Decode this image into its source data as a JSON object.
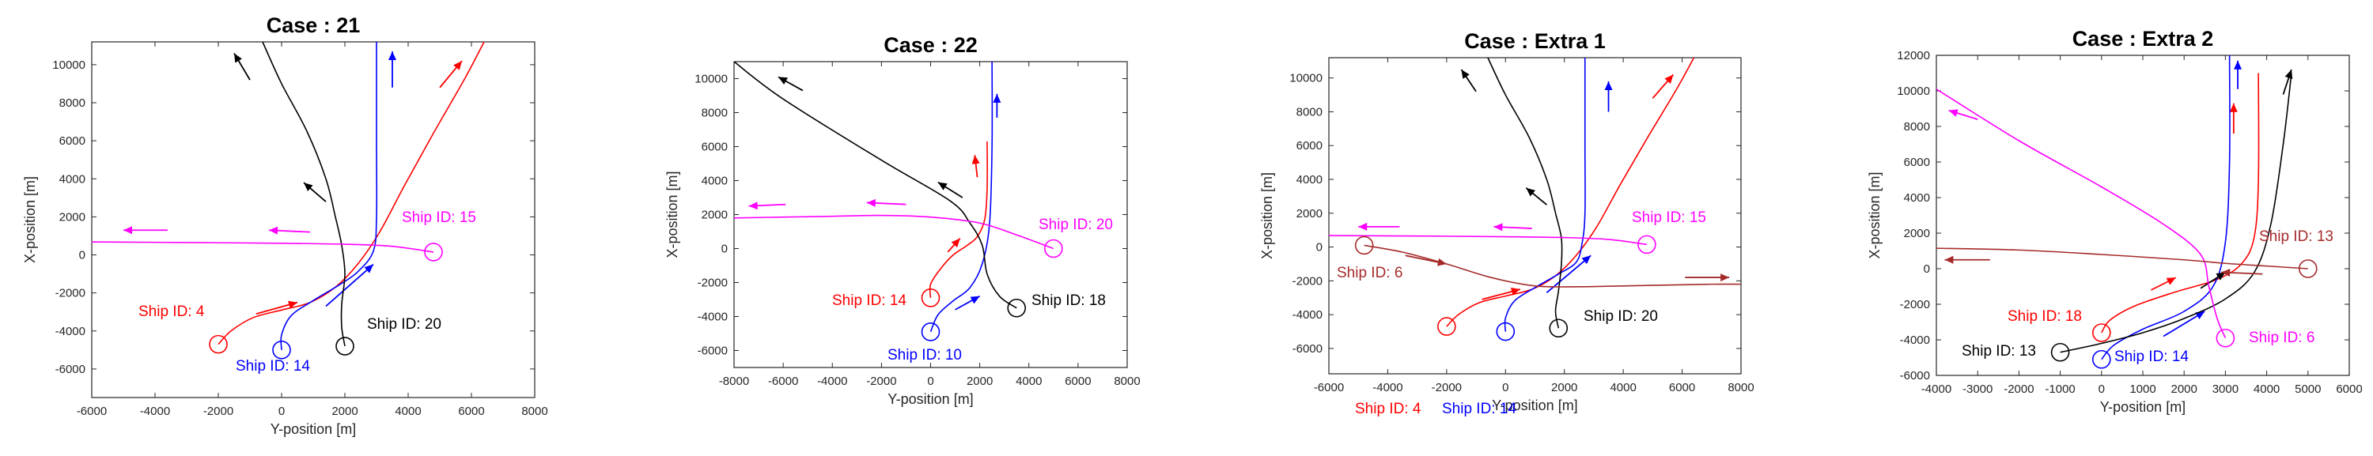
{
  "chart_data": [
    {
      "type": "line",
      "title": "Case : 21",
      "xlabel": "Y-position [m]",
      "ylabel": "X-position [m]",
      "xlim": [
        -6000,
        8000
      ],
      "ylim": [
        -7500,
        11200
      ],
      "xticks": [
        -6000,
        -4000,
        -2000,
        0,
        2000,
        4000,
        6000,
        8000
      ],
      "yticks": [
        -6000,
        -4000,
        -2000,
        0,
        2000,
        4000,
        6000,
        8000,
        10000
      ],
      "series": [
        {
          "name": "Ship ID: 4",
          "color": "#ff0000",
          "label": "Ship ID: 4",
          "x": [
            -2000,
            -1600,
            -900,
            0,
            900,
            1700,
            2400,
            3100,
            3900,
            4800,
            5800,
            6400
          ],
          "y": [
            -4700,
            -4000,
            -3300,
            -2900,
            -2500,
            -1700,
            -500,
            1200,
            3700,
            6400,
            9300,
            11200
          ],
          "arrows": [
            {
              "x1": -800,
              "y1": -3100,
              "x2": 500,
              "y2": -2500
            },
            {
              "x1": 5000,
              "y1": 8800,
              "x2": 5700,
              "y2": 10200
            }
          ]
        },
        {
          "name": "Ship ID: 14",
          "color": "#0000ff",
          "label": "Ship ID: 14",
          "x": [
            0,
            0,
            300,
            1000,
            1800,
            2400,
            2900,
            3000,
            3000,
            3000
          ],
          "y": [
            -5000,
            -4200,
            -3200,
            -2400,
            -1600,
            -900,
            200,
            2000,
            6000,
            11200
          ],
          "arrows": [
            {
              "x1": 1400,
              "y1": -2700,
              "x2": 2900,
              "y2": -500
            },
            {
              "x1": 3500,
              "y1": 8800,
              "x2": 3500,
              "y2": 10700
            }
          ]
        },
        {
          "name": "Ship ID: 20",
          "color": "#000000",
          "label": "Ship ID: 20",
          "x": [
            2000,
            1900,
            1900,
            2000,
            1900,
            1700,
            1400,
            800,
            0,
            -600
          ],
          "y": [
            -4800,
            -3800,
            -2600,
            -1000,
            500,
            2000,
            4000,
            6500,
            9000,
            11200
          ],
          "arrows": [
            {
              "x1": 1400,
              "y1": 2800,
              "x2": 700,
              "y2": 3800
            },
            {
              "x1": -1000,
              "y1": 9200,
              "x2": -1500,
              "y2": 10600
            }
          ]
        },
        {
          "name": "Ship ID: 15",
          "color": "#ff00ff",
          "label": "Ship ID: 15",
          "x": [
            4800,
            3500,
            2000,
            0,
            -2000,
            -4000,
            -6000
          ],
          "y": [
            150,
            450,
            560,
            610,
            640,
            660,
            680
          ],
          "arrows": [
            {
              "x1": 900,
              "y1": 1200,
              "x2": -400,
              "y2": 1300
            },
            {
              "x1": -3600,
              "y1": 1300,
              "x2": -5000,
              "y2": 1300
            }
          ]
        }
      ]
    },
    {
      "type": "line",
      "title": "Case : 22",
      "xlabel": "Y-position [m]",
      "ylabel": "X-position [m]",
      "xlim": [
        -8000,
        8000
      ],
      "ylim": [
        -7000,
        11000
      ],
      "xticks": [
        -8000,
        -6000,
        -4000,
        -2000,
        0,
        2000,
        4000,
        6000,
        8000
      ],
      "yticks": [
        -6000,
        -4000,
        -2000,
        0,
        2000,
        4000,
        6000,
        8000,
        10000
      ],
      "series": [
        {
          "name": "Ship ID: 14",
          "color": "#ff0000",
          "label": "Ship ID: 14",
          "x": [
            0,
            0,
            400,
            900,
            1500,
            1900,
            2200,
            2300,
            2300
          ],
          "y": [
            -2900,
            -2100,
            -1200,
            -400,
            200,
            700,
            1700,
            3500,
            6300
          ],
          "arrows": [
            {
              "x1": 700,
              "y1": -200,
              "x2": 1200,
              "y2": 600
            },
            {
              "x1": 1900,
              "y1": 4200,
              "x2": 1800,
              "y2": 5500
            }
          ]
        },
        {
          "name": "Ship ID: 10",
          "color": "#0000ff",
          "label": "Ship ID: 10",
          "x": [
            0,
            300,
            900,
            1600,
            2100,
            2400,
            2500,
            2500
          ],
          "y": [
            -4900,
            -3900,
            -3100,
            -2300,
            -900,
            1500,
            6000,
            11000
          ],
          "arrows": [
            {
              "x1": 1000,
              "y1": -3600,
              "x2": 2000,
              "y2": -2800
            },
            {
              "x1": 2700,
              "y1": 7700,
              "x2": 2700,
              "y2": 9100
            }
          ]
        },
        {
          "name": "Ship ID: 18",
          "color": "#000000",
          "label": "Ship ID: 18",
          "x": [
            3500,
            2800,
            2300,
            2100,
            1600,
            800,
            -2000,
            -6000,
            -8000
          ],
          "y": [
            -3500,
            -2800,
            -1500,
            200,
            1500,
            2800,
            5200,
            8800,
            11000
          ],
          "arrows": [
            {
              "x1": 1300,
              "y1": 3000,
              "x2": 300,
              "y2": 3900
            },
            {
              "x1": -5200,
              "y1": 9300,
              "x2": -6200,
              "y2": 10100
            }
          ]
        },
        {
          "name": "Ship ID: 20",
          "color": "#ff00ff",
          "label": "Ship ID: 20",
          "x": [
            5000,
            3500,
            2000,
            0,
            -2000,
            -4000,
            -6000,
            -8000
          ],
          "y": [
            0,
            800,
            1500,
            1850,
            1950,
            1900,
            1850,
            1800
          ],
          "arrows": [
            {
              "x1": -1000,
              "y1": 2600,
              "x2": -2600,
              "y2": 2700
            },
            {
              "x1": -5900,
              "y1": 2600,
              "x2": -7400,
              "y2": 2500
            }
          ]
        }
      ]
    },
    {
      "type": "line",
      "title": "Case : Extra 1",
      "xlabel": "Y-position [m]",
      "ylabel": "X-position [m]",
      "xlim": [
        -6000,
        8000
      ],
      "ylim": [
        -7500,
        11200
      ],
      "xticks": [
        -6000,
        -4000,
        -2000,
        0,
        2000,
        4000,
        6000,
        8000
      ],
      "yticks": [
        -6000,
        -4000,
        -2000,
        0,
        2000,
        4000,
        6000,
        8000,
        10000
      ],
      "series": [
        {
          "name": "Ship ID: 4",
          "color": "#ff0000",
          "label": "Ship ID: 4",
          "x": [
            -2000,
            -1600,
            -900,
            0,
            900,
            1700,
            2400,
            3100,
            3900,
            4800,
            5800,
            6400
          ],
          "y": [
            -4700,
            -4000,
            -3300,
            -2900,
            -2500,
            -1700,
            -500,
            1200,
            3700,
            6400,
            9300,
            11200
          ],
          "arrows": [
            {
              "x1": -800,
              "y1": -3100,
              "x2": 500,
              "y2": -2500
            },
            {
              "x1": 5000,
              "y1": 8800,
              "x2": 5700,
              "y2": 10200
            }
          ]
        },
        {
          "name": "Ship ID: 14",
          "color": "#0000ff",
          "label": "Ship ID: 14",
          "x": [
            0,
            0,
            300,
            1000,
            1800,
            2400,
            2600,
            2700,
            2700,
            2700
          ],
          "y": [
            -5000,
            -4200,
            -3200,
            -2400,
            -1600,
            -900,
            200,
            2000,
            6000,
            11200
          ],
          "arrows": [
            {
              "x1": 1400,
              "y1": -2700,
              "x2": 2900,
              "y2": -500
            },
            {
              "x1": 3500,
              "y1": 8000,
              "x2": 3500,
              "y2": 9800
            }
          ]
        },
        {
          "name": "Ship ID: 20",
          "color": "#000000",
          "label": "Ship ID: 20",
          "x": [
            1800,
            1700,
            1800,
            1900,
            1900,
            1700,
            1400,
            800,
            0,
            -600
          ],
          "y": [
            -4800,
            -3800,
            -2600,
            -1000,
            500,
            2000,
            4000,
            6500,
            9000,
            11200
          ],
          "arrows": [
            {
              "x1": 1400,
              "y1": 2500,
              "x2": 700,
              "y2": 3500
            },
            {
              "x1": -1000,
              "y1": 9200,
              "x2": -1500,
              "y2": 10500
            }
          ]
        },
        {
          "name": "Ship ID: 15",
          "color": "#ff00ff",
          "label": "Ship ID: 15",
          "x": [
            4800,
            3500,
            2000,
            0,
            -2000,
            -4000,
            -6000
          ],
          "y": [
            150,
            450,
            560,
            610,
            640,
            660,
            680
          ],
          "arrows": [
            {
              "x1": 900,
              "y1": 1100,
              "x2": -400,
              "y2": 1200
            },
            {
              "x1": -3600,
              "y1": 1200,
              "x2": -5000,
              "y2": 1200
            }
          ]
        },
        {
          "name": "Ship ID: 6",
          "color": "#a52a2a",
          "label": "Ship ID: 6",
          "x": [
            -4800,
            -3500,
            -2000,
            -500,
            1000,
            2500,
            4000,
            5500,
            7000,
            8000
          ],
          "y": [
            100,
            -300,
            -1000,
            -1800,
            -2300,
            -2350,
            -2300,
            -2250,
            -2200,
            -2200
          ],
          "arrows": [
            {
              "x1": -3400,
              "y1": -500,
              "x2": -2000,
              "y2": -1000
            },
            {
              "x1": 6100,
              "y1": -1800,
              "x2": 7600,
              "y2": -1800
            }
          ]
        }
      ]
    },
    {
      "type": "line",
      "title": "Case : Extra 2",
      "xlabel": "Y-position [m]",
      "ylabel": "X-position [m]",
      "xlim": [
        -4000,
        6000
      ],
      "ylim": [
        -6000,
        12000
      ],
      "xticks": [
        -4000,
        -3000,
        -2000,
        -1000,
        0,
        1000,
        2000,
        3000,
        4000,
        5000,
        6000
      ],
      "yticks": [
        -6000,
        -4000,
        -2000,
        0,
        2000,
        4000,
        6000,
        8000,
        10000,
        12000
      ],
      "series": [
        {
          "name": "Ship ID: 18",
          "color": "#ff0000",
          "label": "Ship ID: 18",
          "x": [
            0,
            200,
            800,
            1800,
            2800,
            3400,
            3700,
            3800,
            3800
          ],
          "y": [
            -3600,
            -2900,
            -2100,
            -1300,
            -600,
            300,
            1800,
            5000,
            11000
          ],
          "arrows": [
            {
              "x1": 1200,
              "y1": -1200,
              "x2": 1800,
              "y2": -500
            },
            {
              "x1": 3200,
              "y1": 7600,
              "x2": 3200,
              "y2": 9300
            }
          ]
        },
        {
          "name": "Ship ID: 14",
          "color": "#0000ff",
          "label": "Ship ID: 14",
          "x": [
            0,
            300,
            1000,
            2000,
            2700,
            3000,
            3100,
            3100
          ],
          "y": [
            -5100,
            -4300,
            -3400,
            -2400,
            -1000,
            1500,
            6000,
            12000
          ],
          "arrows": [
            {
              "x1": 1500,
              "y1": -3800,
              "x2": 2500,
              "y2": -2400
            },
            {
              "x1": 3300,
              "y1": 10100,
              "x2": 3300,
              "y2": 11700
            }
          ]
        },
        {
          "name": "Ship ID: 13",
          "color": "#000000",
          "label": "Ship ID: 13",
          "x": [
            -1000,
            0,
            1000,
            2000,
            3000,
            3700,
            4100,
            4400,
            4600
          ],
          "y": [
            -4700,
            -4200,
            -3600,
            -2800,
            -1700,
            -200,
            2500,
            7000,
            11000
          ],
          "arrows": [
            {
              "x1": 2400,
              "y1": -1100,
              "x2": 3000,
              "y2": -200
            },
            {
              "x1": 4400,
              "y1": 9800,
              "x2": 4600,
              "y2": 11200
            }
          ]
        },
        {
          "name": "Ship ID: 6",
          "color": "#ff00ff",
          "label": "Ship ID: 6",
          "x": [
            3000,
            2800,
            2600,
            2400,
            1500,
            0,
            -2000,
            -4000
          ],
          "y": [
            -3900,
            -2800,
            -1000,
            800,
            2500,
            4600,
            7200,
            10100
          ],
          "arrows": [
            {
              "x1": -3000,
              "y1": 8400,
              "x2": -3700,
              "y2": 8900
            }
          ]
        },
        {
          "name": "Ship ID: 13",
          "color": "#a52a2a",
          "label": "Ship ID: 13",
          "x": [
            5000,
            4000,
            3000,
            2000,
            0,
            -2000,
            -4000
          ],
          "y": [
            0,
            150,
            300,
            500,
            800,
            1050,
            1150
          ],
          "arrows": [
            {
              "x1": 3900,
              "y1": -300,
              "x2": 2900,
              "y2": -200
            },
            {
              "x1": -2700,
              "y1": 500,
              "x2": -3800,
              "y2": 500
            }
          ]
        }
      ]
    }
  ]
}
